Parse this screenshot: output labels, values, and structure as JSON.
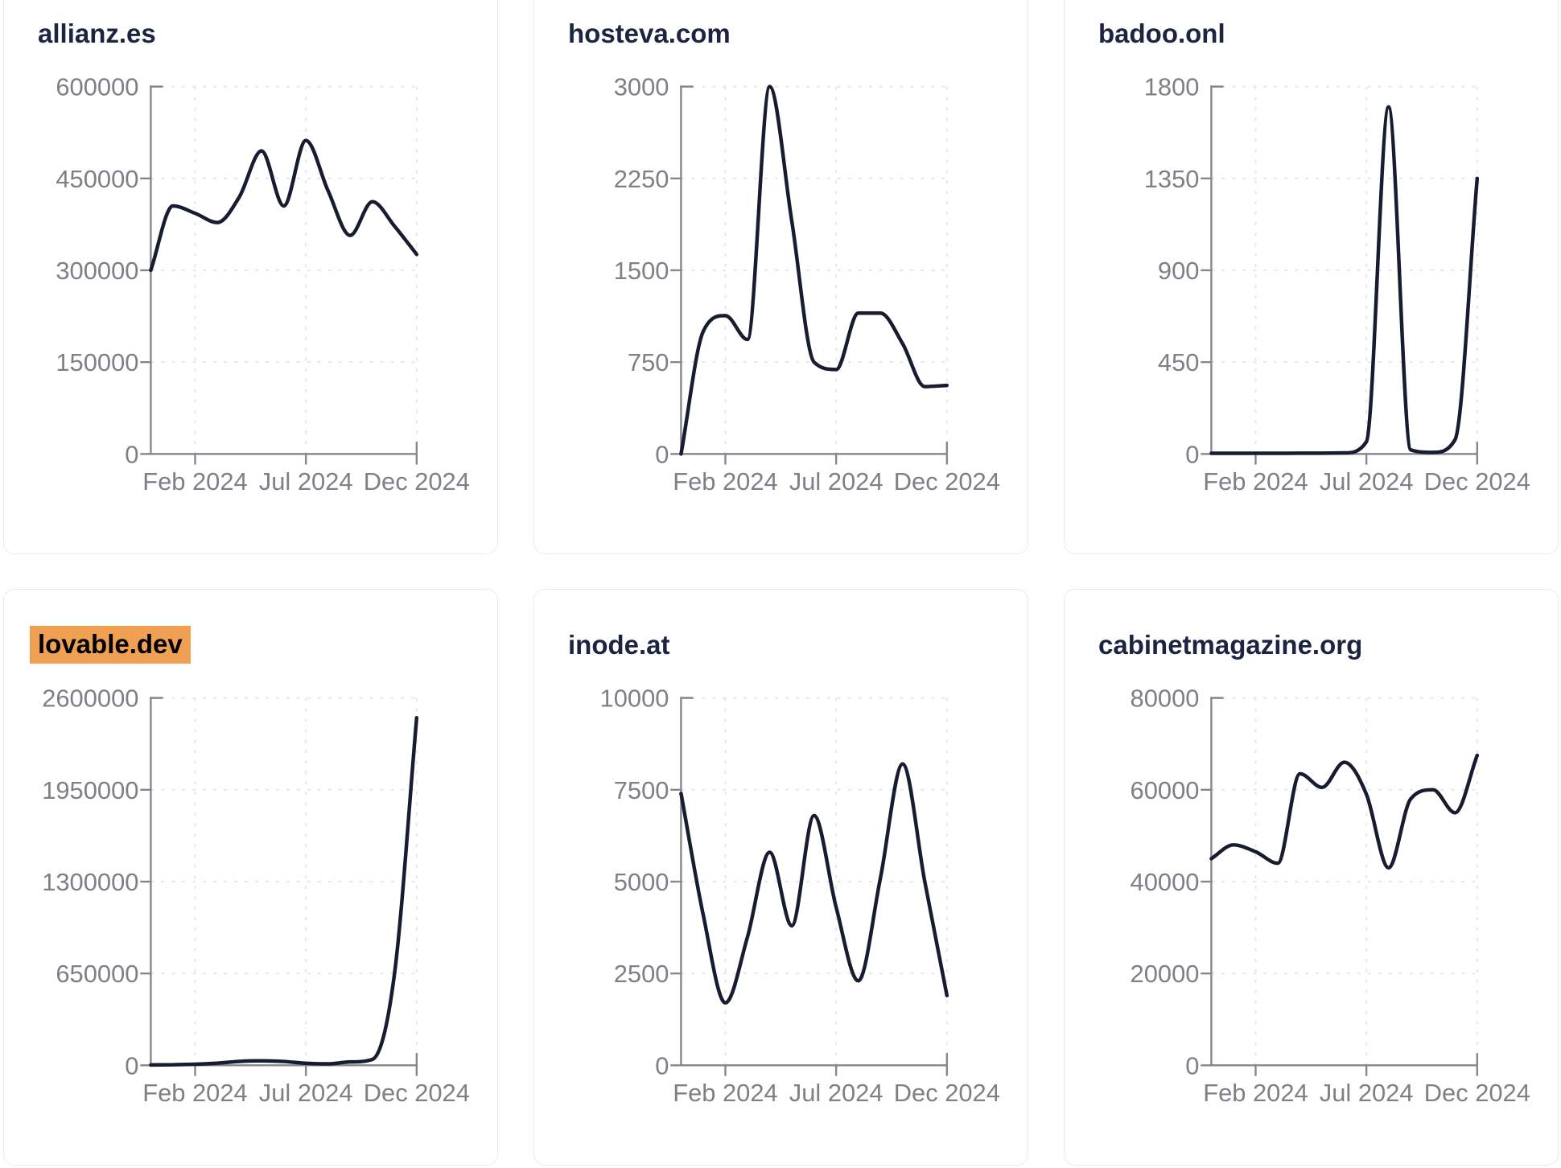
{
  "style": {
    "line_color": "#171c30",
    "axis_color": "#85878d",
    "tick_label_color": "#7e8086",
    "grid_color": "#e6e7ec",
    "title_color": "#1b2440",
    "card_border_color": "#e9ebf2",
    "highlight_color": "#f0a053",
    "page_background": "#ffffff"
  },
  "x_axis": {
    "tick_labels": [
      "Feb 2024",
      "Jul 2024",
      "Dec 2024"
    ],
    "tick_month_indices": [
      2,
      7,
      12
    ]
  },
  "chart_data": [
    {
      "type": "line",
      "title": "allianz.es",
      "title_highlighted": false,
      "x": [
        "Dec 2023",
        "Jan 2024",
        "Feb 2024",
        "Mar 2024",
        "Apr 2024",
        "May 2024",
        "Jun 2024",
        "Jul 2024",
        "Aug 2024",
        "Sep 2024",
        "Oct 2024",
        "Nov 2024",
        "Dec 2024"
      ],
      "values": [
        300000,
        405000,
        393000,
        378000,
        420000,
        495000,
        405000,
        512000,
        430000,
        357000,
        412000,
        372000,
        326000
      ],
      "ylim": [
        0,
        600000
      ],
      "yticks": [
        0,
        150000,
        300000,
        450000,
        600000
      ],
      "xticks": [
        "Feb 2024",
        "Jul 2024",
        "Dec 2024"
      ],
      "grid": "dashed",
      "legend": "none"
    },
    {
      "type": "line",
      "title": "hosteva.com",
      "title_highlighted": false,
      "x": [
        "Dec 2023",
        "Jan 2024",
        "Feb 2024",
        "Mar 2024",
        "Apr 2024",
        "May 2024",
        "Jun 2024",
        "Jul 2024",
        "Aug 2024",
        "Sep 2024",
        "Oct 2024",
        "Nov 2024",
        "Dec 2024"
      ],
      "values": [
        0,
        1000,
        1130,
        935,
        3000,
        1900,
        750,
        690,
        1150,
        1150,
        900,
        550,
        560
      ],
      "ylim": [
        0,
        3000
      ],
      "yticks": [
        0,
        750,
        1500,
        2250,
        3000
      ],
      "xticks": [
        "Feb 2024",
        "Jul 2024",
        "Dec 2024"
      ],
      "grid": "dashed",
      "legend": "none"
    },
    {
      "type": "line",
      "title": "badoo.onl",
      "title_highlighted": false,
      "x": [
        "Dec 2023",
        "Jan 2024",
        "Feb 2024",
        "Mar 2024",
        "Apr 2024",
        "May 2024",
        "Jun 2024",
        "Jul 2024",
        "Aug 2024",
        "Sep 2024",
        "Oct 2024",
        "Nov 2024",
        "Dec 2024"
      ],
      "values": [
        3,
        3,
        3,
        3,
        4,
        4,
        5,
        60,
        1700,
        20,
        8,
        70,
        1350
      ],
      "ylim": [
        0,
        1800
      ],
      "yticks": [
        0,
        450,
        900,
        1350,
        1800
      ],
      "xticks": [
        "Feb 2024",
        "Jul 2024",
        "Dec 2024"
      ],
      "grid": "dashed",
      "legend": "none"
    },
    {
      "type": "line",
      "title": "lovable.dev",
      "title_highlighted": true,
      "x": [
        "Dec 2023",
        "Jan 2024",
        "Feb 2024",
        "Mar 2024",
        "Apr 2024",
        "May 2024",
        "Jun 2024",
        "Jul 2024",
        "Aug 2024",
        "Sep 2024",
        "Oct 2024",
        "Nov 2024",
        "Dec 2024"
      ],
      "values": [
        3000,
        4000,
        8000,
        15000,
        28000,
        32000,
        27000,
        14000,
        10000,
        24000,
        42000,
        650000,
        2460000
      ],
      "ylim": [
        0,
        2600000
      ],
      "yticks": [
        0,
        650000,
        1300000,
        1950000,
        2600000
      ],
      "xticks": [
        "Feb 2024",
        "Jul 2024",
        "Dec 2024"
      ],
      "grid": "dashed",
      "legend": "none"
    },
    {
      "type": "line",
      "title": "inode.at",
      "title_highlighted": false,
      "x": [
        "Dec 2023",
        "Jan 2024",
        "Feb 2024",
        "Mar 2024",
        "Apr 2024",
        "May 2024",
        "Jun 2024",
        "Jul 2024",
        "Aug 2024",
        "Sep 2024",
        "Oct 2024",
        "Nov 2024",
        "Dec 2024"
      ],
      "values": [
        7400,
        4100,
        1700,
        3500,
        5800,
        3800,
        6800,
        4300,
        2300,
        5100,
        8200,
        5000,
        1900
      ],
      "ylim": [
        0,
        10000
      ],
      "yticks": [
        0,
        2500,
        5000,
        7500,
        10000
      ],
      "xticks": [
        "Feb 2024",
        "Jul 2024",
        "Dec 2024"
      ],
      "grid": "dashed",
      "legend": "none"
    },
    {
      "type": "line",
      "title": "cabinetmagazine.org",
      "title_highlighted": false,
      "x": [
        "Dec 2023",
        "Jan 2024",
        "Feb 2024",
        "Mar 2024",
        "Apr 2024",
        "May 2024",
        "Jun 2024",
        "Jul 2024",
        "Aug 2024",
        "Sep 2024",
        "Oct 2024",
        "Nov 2024",
        "Dec 2024"
      ],
      "values": [
        45000,
        48000,
        46500,
        44000,
        63500,
        60500,
        66000,
        59000,
        43000,
        58000,
        60000,
        55000,
        67500
      ],
      "ylim": [
        0,
        80000
      ],
      "yticks": [
        0,
        20000,
        40000,
        60000,
        80000
      ],
      "xticks": [
        "Feb 2024",
        "Jul 2024",
        "Dec 2024"
      ],
      "grid": "dashed",
      "legend": "none"
    }
  ]
}
